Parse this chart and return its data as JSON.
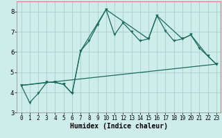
{
  "xlabel": "Humidex (Indice chaleur)",
  "background_color": "#cdecea",
  "grid_color": "#aad4d0",
  "line_color": "#1a6b5a",
  "xlim": [
    -0.5,
    23.5
  ],
  "ylim": [
    3.0,
    8.5
  ],
  "yticks": [
    3,
    4,
    5,
    6,
    7,
    8
  ],
  "xticks": [
    0,
    1,
    2,
    3,
    4,
    5,
    6,
    7,
    8,
    9,
    10,
    11,
    12,
    13,
    14,
    15,
    16,
    17,
    18,
    19,
    20,
    21,
    22,
    23
  ],
  "series1_x": [
    0,
    1,
    2,
    3,
    4,
    5,
    6,
    7,
    8,
    9,
    10,
    11,
    12,
    13,
    14,
    15,
    16,
    17,
    18,
    19,
    20,
    21,
    22,
    23
  ],
  "series1_y": [
    4.35,
    3.5,
    3.95,
    4.5,
    4.5,
    4.4,
    3.95,
    6.05,
    6.55,
    7.35,
    8.1,
    6.85,
    7.45,
    7.0,
    6.55,
    6.65,
    7.8,
    7.05,
    6.55,
    6.65,
    6.85,
    6.2,
    5.8,
    5.4
  ],
  "series2_x": [
    0,
    3,
    4,
    5,
    6,
    7,
    10,
    15,
    16,
    19,
    20,
    22,
    23
  ],
  "series2_y": [
    4.35,
    4.5,
    4.5,
    4.4,
    3.95,
    6.05,
    8.1,
    6.65,
    7.8,
    6.65,
    6.85,
    5.8,
    5.4
  ],
  "series3_x": [
    0,
    23
  ],
  "series3_y": [
    4.35,
    5.4
  ]
}
